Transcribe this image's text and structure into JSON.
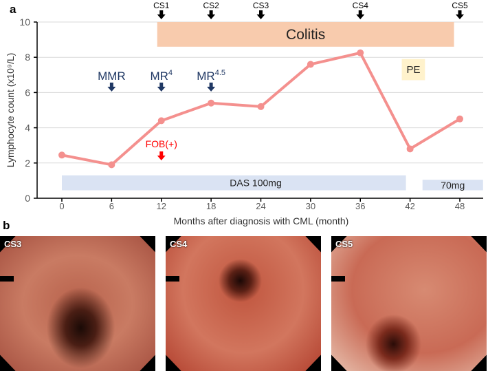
{
  "panel_a_label": "a",
  "panel_b_label": "b",
  "chart_data": {
    "type": "line",
    "xlabel": "Months after diagnosis with CML (month)",
    "ylabel": "Lymphocyte count (x10⁹/L)",
    "xlim": [
      -3,
      51
    ],
    "ylim": [
      0,
      10
    ],
    "xticks": [
      0,
      6,
      12,
      18,
      24,
      30,
      36,
      42,
      48
    ],
    "yticks": [
      0,
      2,
      4,
      6,
      8,
      10
    ],
    "grid": "horizontal",
    "series": [
      {
        "name": "Lymphocyte count",
        "color": "#f4908e",
        "x": [
          0,
          6,
          12,
          18,
          24,
          30,
          36,
          42,
          48
        ],
        "y": [
          2.45,
          1.9,
          4.4,
          5.4,
          5.2,
          7.6,
          8.25,
          2.8,
          4.5
        ]
      }
    ],
    "top_markers": [
      {
        "label": "CS1",
        "x": 12
      },
      {
        "label": "CS2",
        "x": 18
      },
      {
        "label": "CS3",
        "x": 24
      },
      {
        "label": "CS4",
        "x": 36
      },
      {
        "label": "CS5",
        "x": 48
      }
    ],
    "response_markers": [
      {
        "label": "MMR",
        "sup": "",
        "x": 6
      },
      {
        "label": "MR",
        "sup": "4",
        "x": 12
      },
      {
        "label": "MR",
        "sup": "4.5",
        "x": 18
      }
    ],
    "fob_marker": {
      "label": "FOB(+)",
      "x": 12,
      "color": "#ff0000"
    },
    "bands": [
      {
        "label": "Colitis",
        "x0": 11.5,
        "x1": 47.3,
        "y0": 8.6,
        "y1": 10,
        "color": "#f8cbad"
      },
      {
        "label": "DAS 100mg",
        "x0": 0,
        "x1": 41.5,
        "y0": 0.45,
        "y1": 1.3,
        "color": "#dae3f3"
      },
      {
        "label": "70mg",
        "x0": 43.5,
        "x1": 50.8,
        "y0": 0.45,
        "y1": 1.05,
        "color": "#dae3f3"
      },
      {
        "label": "PE",
        "x0": 41,
        "x1": 43.8,
        "y0": 6.7,
        "y1": 7.9,
        "color": "#fff2cc"
      }
    ]
  },
  "images": [
    {
      "label": "CS3"
    },
    {
      "label": "CS4"
    },
    {
      "label": "CS5"
    }
  ]
}
